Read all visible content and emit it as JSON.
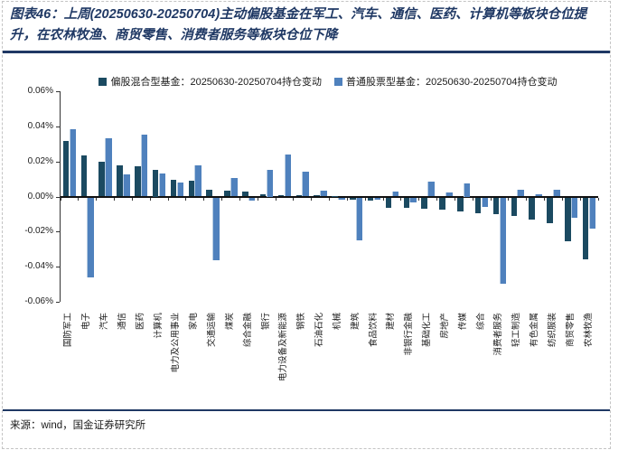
{
  "figure": {
    "title": "图表46：上周(20250630-20250704)主动偏股基金在军工、汽车、通信、医药、计算机等板块仓位提升，在农林牧渔、商贸零售、消费者服务等板块仓位下降",
    "source": "来源：wind，国金证券研究所"
  },
  "colors": {
    "accent_navy": "#1f3864",
    "dark_series": "#1b4a61",
    "light_series": "#4f81bd",
    "light_series_edge": "#b7cce2",
    "axis": "#333333",
    "zero_line": "#111111"
  },
  "chart_data": {
    "type": "bar",
    "title": "",
    "xlabel": "",
    "ylabel": "",
    "ylim": [
      -0.06,
      0.06
    ],
    "y_ticks": [
      "0.06%",
      "0.04%",
      "0.02%",
      "0.00%",
      "-0.02%",
      "-0.04%",
      "-0.06%"
    ],
    "grid": false,
    "legend_position": "top",
    "value_unit": "percent of fund position change",
    "categories": [
      "国防军工",
      "电子",
      "汽车",
      "通信",
      "医药",
      "计算机",
      "电力及公用事业",
      "家电",
      "交通运输",
      "煤炭",
      "综合金融",
      "银行",
      "电力设备及新能源",
      "钢铁",
      "石油石化",
      "机械",
      "建筑",
      "食品饮料",
      "建材",
      "非银行金融",
      "基础化工",
      "房地产",
      "传媒",
      "综合",
      "消费者服务",
      "轻工制造",
      "有色金属",
      "纺织服装",
      "商贸零售",
      "农林牧渔"
    ],
    "series": [
      {
        "name": "偏股混合型基金：20250630-20250704持仓变动",
        "color": "#1b4a61",
        "values": [
          0.0315,
          0.0235,
          0.02,
          0.018,
          0.0175,
          0.015,
          0.0095,
          0.009,
          0.004,
          0.0035,
          0.003,
          0.0015,
          0.001,
          0.001,
          0.001,
          0.0005,
          -0.001,
          -0.0015,
          -0.0055,
          -0.0055,
          -0.006,
          -0.0065,
          -0.0075,
          -0.009,
          -0.0095,
          -0.0105,
          -0.0125,
          -0.0145,
          -0.0245,
          -0.035
        ]
      },
      {
        "name": "普通股票型基金：20250630-20250704持仓变动",
        "color": "#4f81bd",
        "values": [
          0.0385,
          -0.0455,
          0.033,
          0.0125,
          0.0355,
          0.013,
          0.008,
          0.018,
          -0.0355,
          0.0105,
          -0.0015,
          0.015,
          0.024,
          0.014,
          0.0035,
          -0.001,
          -0.024,
          -0.001,
          0.003,
          -0.0025,
          0.0085,
          0.0025,
          0.0075,
          -0.005,
          -0.049,
          0.004,
          0.0015,
          0.004,
          -0.0115,
          -0.0175
        ]
      }
    ]
  }
}
